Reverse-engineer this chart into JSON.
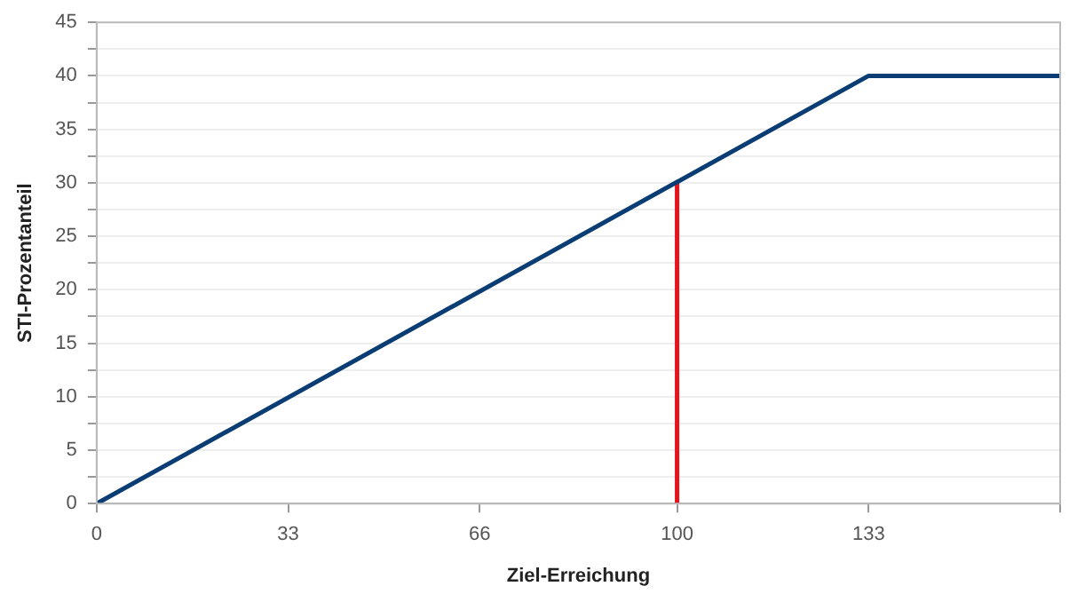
{
  "chart_data": {
    "type": "line",
    "xlabel": "Ziel-Erreichung",
    "ylabel": "STI-Prozentanteil",
    "series": [
      {
        "color": "#0a3d73",
        "x": [
          0,
          133,
          166
        ],
        "values": [
          0,
          40,
          40
        ]
      },
      {
        "color": "#e8141b",
        "x": [
          100,
          100
        ],
        "values": [
          0,
          30
        ]
      }
    ],
    "xlim": [
      0,
      166
    ],
    "xticks": [
      0,
      33,
      66,
      100,
      133,
      {
        "value": 166,
        "label": null
      }
    ],
    "ylim": [
      0,
      45
    ],
    "yticks": [
      0,
      {
        "value": 2.5,
        "label": null
      },
      5,
      {
        "value": 7.5,
        "label": null
      },
      10,
      {
        "value": 12.5,
        "label": null
      },
      15,
      {
        "value": 17.5,
        "label": null
      },
      20,
      {
        "value": 22.5,
        "label": null
      },
      25,
      {
        "value": 27.5,
        "label": null
      },
      30,
      {
        "value": 32.5,
        "label": null
      },
      35,
      {
        "value": 37.5,
        "label": null
      },
      40,
      {
        "value": 42.5,
        "label": null
      },
      45
    ],
    "grid": "y",
    "legend": false,
    "marker": "none",
    "line_style": "solid"
  }
}
